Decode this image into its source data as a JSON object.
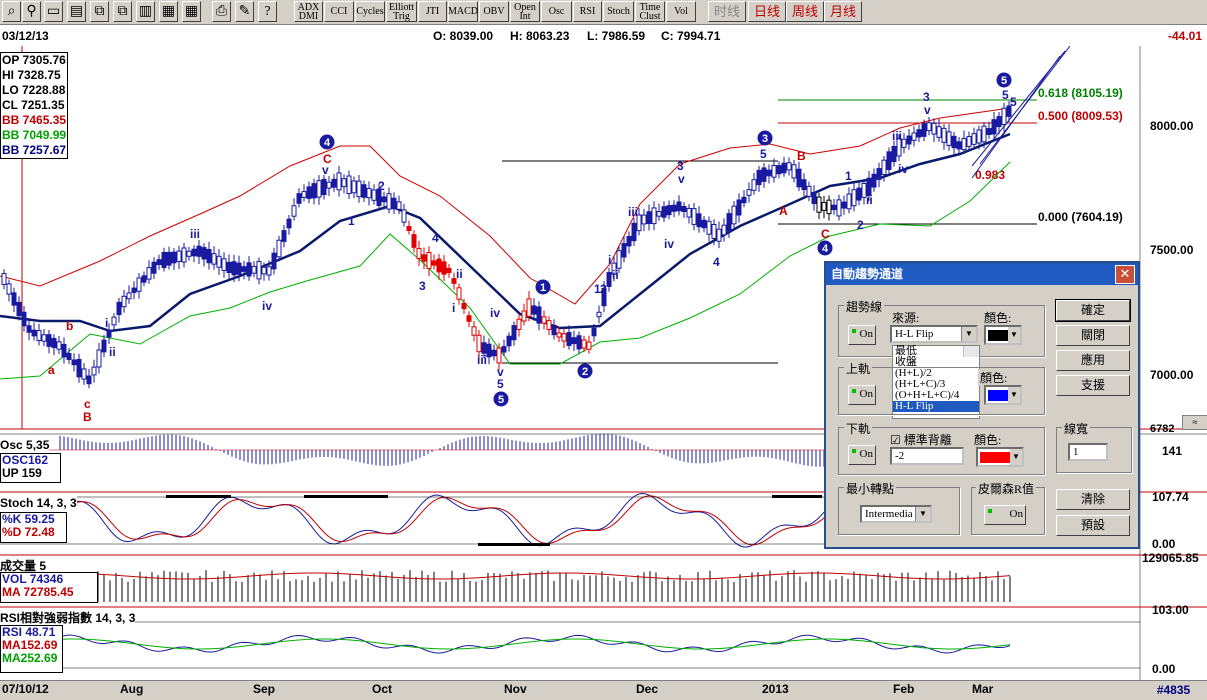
{
  "toolbar": {
    "indicators": [
      "ADX\nDMI",
      "CCI",
      "Cycles",
      "Elliott\nTrig",
      "JTI",
      "MACD",
      "OBV",
      "Open\nInt",
      "Osc",
      "RSI",
      "Stoch",
      "Time\nClust",
      "Vol"
    ],
    "periods": [
      "时线",
      "日线",
      "周线",
      "月线"
    ]
  },
  "info": {
    "date": "03/12/13",
    "open": "O: 8039.00",
    "high": "H: 8063.23",
    "low": "L: 7986.59",
    "close": "C: 7994.71",
    "change": "-44.01"
  },
  "legend": {
    "op": "OP 7305.76",
    "hi": "HI 7328.75",
    "lo": "LO 7228.88",
    "cl": "CL 7251.35",
    "bb1": "BB 7465.35",
    "bb2": "BB 7049.99",
    "bb3": "BB 7257.67"
  },
  "price_axis": [
    "8000.00",
    "7500.00",
    "7000.00",
    "6782"
  ],
  "fib": {
    "f618": "0.618 (8105.19)",
    "f500": "0.500 (8009.53)",
    "f000": "0.000 (7604.19)",
    "val": "0.983"
  },
  "waves": {
    "c4": "4",
    "c3": "3",
    "c5top": "5",
    "c1": "1",
    "c2": "2",
    "c5bot": "5",
    "c4b": "4",
    "a": "a",
    "b": "b",
    "c": "c",
    "B": "B",
    "C": "C",
    "A": "A",
    "Bb": "B",
    "Cc": "C",
    "v": "v",
    "iii": "iii",
    "ii": "ii",
    "i": "i",
    "iv": "iv",
    "one": "1",
    "two": "2",
    "three": "3",
    "four": "4",
    "five": "5"
  },
  "osc": {
    "title": "Osc 5,35",
    "osc": "OSC162",
    "up": "UP  159",
    "right": "141"
  },
  "stoch": {
    "title": "Stoch 14, 3, 3",
    "k": "%K  59.25",
    "d": "%D  72.48",
    "right": "107.74",
    "zero": "0.00"
  },
  "vol": {
    "title": "成交量 5",
    "vol": "VOL 74346",
    "ma": "MA  72785.45",
    "right": "129065.85"
  },
  "rsi": {
    "title": "RSI相對強弱指數 14, 3, 3",
    "rsi": "RSI  48.71",
    "ma1": "MA152.69",
    "ma2": "MA252.69",
    "right": "103.00",
    "zero": "0.00"
  },
  "xaxis": {
    "start": "07/10/12",
    "months": [
      "Aug",
      "Sep",
      "Oct",
      "Nov",
      "Dec",
      "2013",
      "Feb",
      "Mar"
    ]
  },
  "status": "#4835",
  "dialog": {
    "title": "自動趨勢通道",
    "g_trend": "趨勢線",
    "source_label": "來源:",
    "source_value": "H-L Flip",
    "color_label": "顏色:",
    "g_upper": "上軌",
    "g_lower": "下軌",
    "std_label": "標準背離",
    "std_value": "-2",
    "g_min": "最小轉點",
    "min_value": "Intermedia",
    "g_pearson": "皮爾森R值",
    "width_label": "線寬",
    "width_value": "1",
    "on": "On",
    "list": [
      "最低",
      "收盤",
      "(H+L)/2",
      "(H+L+C)/3",
      "(O+H+L+C)/4",
      "H-L Flip"
    ],
    "buttons": [
      "確定",
      "關閉",
      "應用",
      "支援",
      "清除",
      "預設"
    ],
    "colors": {
      "trend": "#000000",
      "upper": "#0000ff",
      "lower": "#ff0000"
    }
  }
}
